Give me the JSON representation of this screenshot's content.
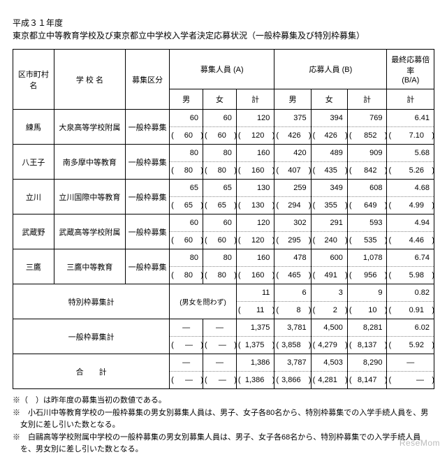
{
  "title": {
    "line1": "平成３１年度",
    "line2": "東京都立中等教育学校及び東京都立中学校入学者決定応募状況（一般枠募集及び特別枠募集）"
  },
  "headers": {
    "district": "区市町村名",
    "school": "学 校 名",
    "category": "募集区分",
    "recruitA": "募集人員 (A)",
    "applicantB": "応募人員 (B)",
    "ratio": "最終応募倍率",
    "ratioSub": "(B/A)",
    "male": "男",
    "female": "女",
    "total": "計"
  },
  "rows": [
    {
      "district": "練馬",
      "school": "大泉高等学校附属",
      "category": "一般枠募集",
      "aM": {
        "t": "60",
        "b": "60"
      },
      "aF": {
        "t": "60",
        "b": "60"
      },
      "aT": {
        "t": "120",
        "b": "120"
      },
      "bM": {
        "t": "375",
        "b": "426"
      },
      "bF": {
        "t": "394",
        "b": "426"
      },
      "bT": {
        "t": "769",
        "b": "852"
      },
      "r": {
        "t": "6.41",
        "b": "7.10"
      }
    },
    {
      "district": "八王子",
      "school": "南多摩中等教育",
      "category": "一般枠募集",
      "aM": {
        "t": "80",
        "b": "80"
      },
      "aF": {
        "t": "80",
        "b": "80"
      },
      "aT": {
        "t": "160",
        "b": "160"
      },
      "bM": {
        "t": "420",
        "b": "407"
      },
      "bF": {
        "t": "489",
        "b": "435"
      },
      "bT": {
        "t": "909",
        "b": "842"
      },
      "r": {
        "t": "5.68",
        "b": "5.26"
      }
    },
    {
      "district": "立川",
      "school": "立川国際中等教育",
      "category": "一般枠募集",
      "aM": {
        "t": "65",
        "b": "65"
      },
      "aF": {
        "t": "65",
        "b": "65"
      },
      "aT": {
        "t": "130",
        "b": "130"
      },
      "bM": {
        "t": "259",
        "b": "294"
      },
      "bF": {
        "t": "349",
        "b": "355"
      },
      "bT": {
        "t": "608",
        "b": "649"
      },
      "r": {
        "t": "4.68",
        "b": "4.99"
      }
    },
    {
      "district": "武蔵野",
      "school": "武蔵高等学校附属",
      "category": "一般枠募集",
      "aM": {
        "t": "60",
        "b": "60"
      },
      "aF": {
        "t": "60",
        "b": "60"
      },
      "aT": {
        "t": "120",
        "b": "120"
      },
      "bM": {
        "t": "302",
        "b": "295"
      },
      "bF": {
        "t": "291",
        "b": "240"
      },
      "bT": {
        "t": "593",
        "b": "535"
      },
      "r": {
        "t": "4.94",
        "b": "4.46"
      }
    },
    {
      "district": "三鷹",
      "school": "三鷹中等教育",
      "category": "一般枠募集",
      "aM": {
        "t": "80",
        "b": "80"
      },
      "aF": {
        "t": "80",
        "b": "80"
      },
      "aT": {
        "t": "160",
        "b": "160"
      },
      "bM": {
        "t": "478",
        "b": "465"
      },
      "bF": {
        "t": "600",
        "b": "491"
      },
      "bT": {
        "t": "1,078",
        "b": "956"
      },
      "r": {
        "t": "6.74",
        "b": "5.98"
      }
    }
  ],
  "special": {
    "label": "特別枠募集計",
    "aMF": "(男女を問わず)",
    "aT": {
      "t": "11",
      "b": "11"
    },
    "bM": {
      "t": "6",
      "b": "8"
    },
    "bF": {
      "t": "3",
      "b": "2"
    },
    "bT": {
      "t": "9",
      "b": "10"
    },
    "r": {
      "t": "0.82",
      "b": "0.91"
    }
  },
  "generalTotal": {
    "label": "一般枠募集計",
    "aM": {
      "t": "—",
      "b": "—"
    },
    "aF": {
      "t": "—",
      "b": "—"
    },
    "aT": {
      "t": "1,375",
      "b": "1,375"
    },
    "bM": {
      "t": "3,781",
      "b": "3,858"
    },
    "bF": {
      "t": "4,500",
      "b": "4,279"
    },
    "bT": {
      "t": "8,281",
      "b": "8,137"
    },
    "r": {
      "t": "6.02",
      "b": "5.92"
    }
  },
  "grandTotal": {
    "label": "合　　計",
    "aM": {
      "t": "—",
      "b": "—"
    },
    "aF": {
      "t": "—",
      "b": "—"
    },
    "aT": {
      "t": "1,386",
      "b": "1,386"
    },
    "bM": {
      "t": "3,787",
      "b": "3,866"
    },
    "bF": {
      "t": "4,503",
      "b": "4,281"
    },
    "bT": {
      "t": "8,290",
      "b": "8,147"
    },
    "r": {
      "t": "—",
      "b": "—"
    }
  },
  "notes": [
    "※（　）は昨年度の募集当初の数値である。",
    "※　小石川中等教育学校の一般枠募集の男女別募集人員は、男子、女子各80名から、特別枠募集での入学手続人員を、男女別に差し引いた数となる。",
    "※　白鷗高等学校附属中学校の一般枠募集の男女別募集人員は、男子、女子各68名から、特別枠募集での入学手続人員を、男女別に差し引いた数となる。"
  ],
  "watermark": "ReseMom"
}
